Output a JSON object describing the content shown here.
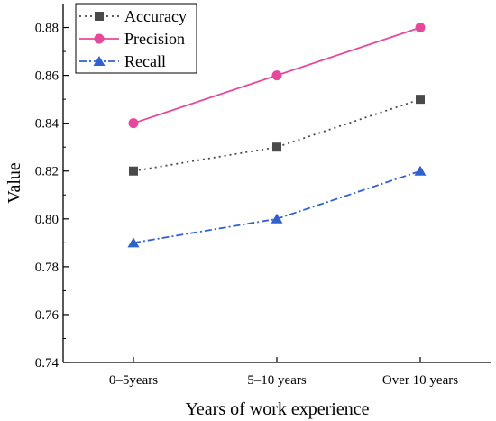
{
  "chart_data": {
    "type": "line",
    "xlabel": "Years of work experience",
    "ylabel": "Value",
    "categories": [
      "0–5years",
      "5–10 years",
      "Over 10 years"
    ],
    "ylim": [
      0.74,
      0.89
    ],
    "yticks": [
      "0.74",
      "0.76",
      "0.78",
      "0.80",
      "0.82",
      "0.84",
      "0.86",
      "0.88"
    ],
    "grid": false,
    "legend_position": "top-left",
    "series": [
      {
        "name": "Accuracy",
        "values": [
          0.82,
          0.83,
          0.85
        ],
        "color": "#4a4a4a",
        "line_style": "dotted",
        "marker": "square"
      },
      {
        "name": "Precision",
        "values": [
          0.84,
          0.86,
          0.88
        ],
        "color": "#e8489a",
        "line_style": "solid",
        "marker": "circle"
      },
      {
        "name": "Recall",
        "values": [
          0.79,
          0.8,
          0.82
        ],
        "color": "#2f62d0",
        "line_style": "dash-dot",
        "marker": "triangle"
      }
    ]
  }
}
